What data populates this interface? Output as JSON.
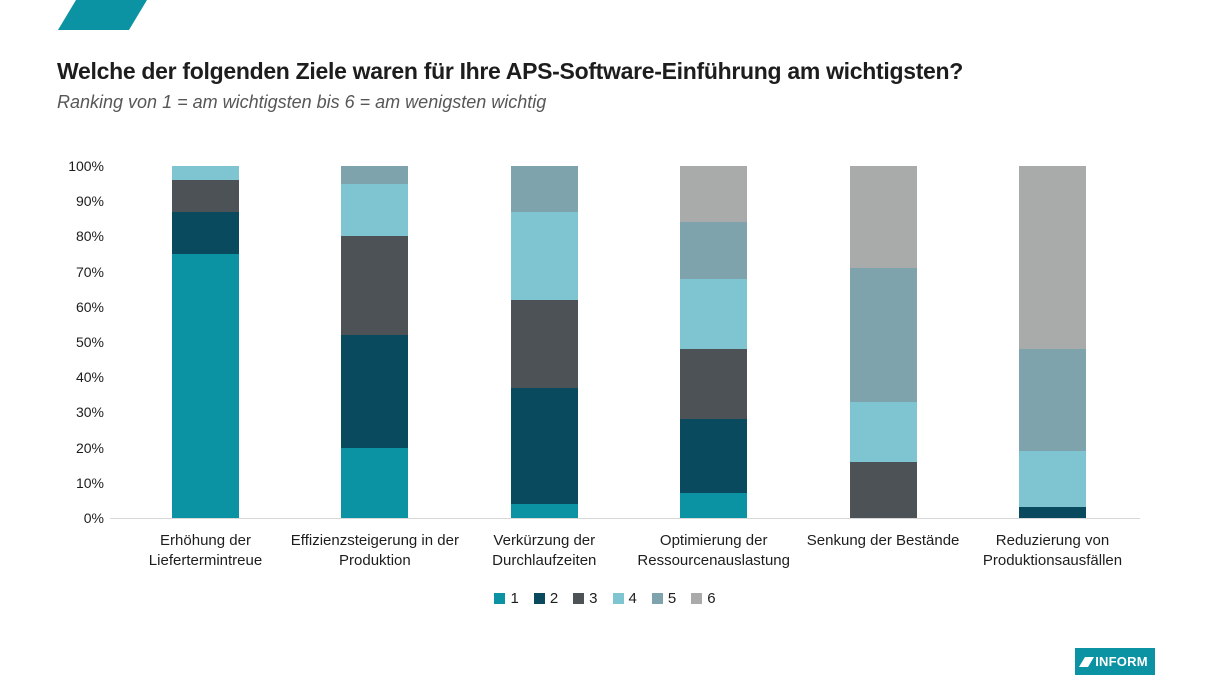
{
  "header": {
    "title": "Welche der folgenden Ziele waren für Ihre APS-Software-Einführung am wichtigsten?",
    "subtitle": "Ranking von 1 = am wichtigsten bis 6 = am wenigsten wichtig"
  },
  "colors": {
    "brand_teal": "#0b93a3",
    "text_dark": "#1d1d1b",
    "text_gray": "#575756",
    "axis_line": "#d8d8d8"
  },
  "chart_data": {
    "type": "bar",
    "variant": "stacked-100-percent-column",
    "unit": "%",
    "ylim": [
      0,
      100
    ],
    "grid": false,
    "legend_position": "bottom",
    "y_ticks": [
      "100%",
      "90%",
      "80%",
      "70%",
      "60%",
      "50%",
      "40%",
      "30%",
      "20%",
      "10%",
      "0%"
    ],
    "categories": [
      "Erhöhung der\nLiefertermintreue",
      "Effizienzsteigerung in der\nProduktion",
      "Verkürzung der\nDurchlaufzeiten",
      "Optimierung der\nRessourcenauslastung",
      "Senkung der Bestände",
      "Reduzierung von\nProduktionsausfällen"
    ],
    "series": [
      {
        "name": "1",
        "color": "#0b93a3",
        "values": [
          75,
          20,
          4,
          7,
          0,
          0
        ]
      },
      {
        "name": "2",
        "color": "#0a4a5e",
        "values": [
          12,
          32,
          33,
          21,
          0,
          3
        ]
      },
      {
        "name": "3",
        "color": "#4c5256",
        "values": [
          9,
          28,
          25,
          20,
          16,
          0
        ]
      },
      {
        "name": "4",
        "color": "#7ec4d1",
        "values": [
          4,
          15,
          25,
          20,
          17,
          16
        ]
      },
      {
        "name": "5",
        "color": "#7fa3ad",
        "values": [
          0,
          5,
          13,
          16,
          38,
          29
        ]
      },
      {
        "name": "6",
        "color": "#a9abab",
        "values": [
          0,
          0,
          0,
          16,
          29,
          52
        ]
      }
    ]
  },
  "footer": {
    "logo_text": "INFORM"
  }
}
